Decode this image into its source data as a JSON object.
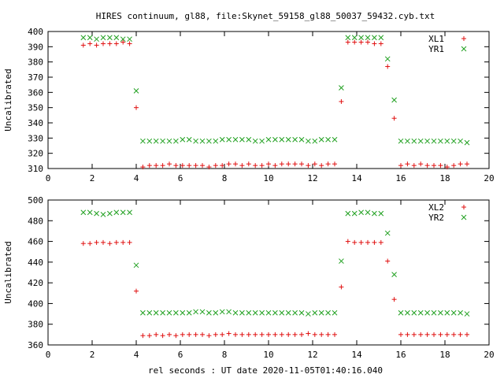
{
  "title": "HIRES continuum, gl88, file:Skynet_59158_gl88_50037_59432.cyb.txt",
  "xlabel": "rel seconds : UT date 2020-11-05T01:40:16.040",
  "colors": {
    "series1": "#e01010",
    "series2": "#20a020"
  },
  "chart_data": [
    {
      "type": "scatter",
      "ylabel": "Uncalibrated",
      "xlim": [
        0,
        20
      ],
      "ylim": [
        310,
        400
      ],
      "xticks": [
        "0",
        "2",
        "4",
        "6",
        "8",
        "10",
        "12",
        "14",
        "16",
        "18",
        "20"
      ],
      "yticks": [
        "310",
        "320",
        "330",
        "340",
        "350",
        "360",
        "370",
        "380",
        "390",
        "400"
      ],
      "legend_position": "top-right",
      "series": [
        {
          "name": "XL1",
          "marker": "plus",
          "x": [
            1.6,
            1.9,
            2.2,
            2.5,
            2.8,
            3.1,
            3.4,
            3.7,
            4.0,
            4.3,
            4.6,
            4.9,
            5.2,
            5.5,
            5.8,
            6.1,
            6.4,
            6.7,
            7.0,
            7.3,
            7.6,
            7.9,
            8.2,
            8.5,
            8.8,
            9.1,
            9.4,
            9.7,
            10.0,
            10.3,
            10.6,
            10.9,
            11.2,
            11.5,
            11.8,
            12.1,
            12.4,
            12.7,
            13.0,
            13.3,
            13.6,
            13.9,
            14.2,
            14.5,
            14.8,
            15.1,
            15.4,
            15.7,
            16.0,
            16.3,
            16.6,
            16.9,
            17.2,
            17.5,
            17.8,
            18.1,
            18.4,
            18.7,
            19.0
          ],
          "y": [
            391,
            392,
            391,
            392,
            392,
            392,
            393,
            392,
            350,
            311,
            312,
            312,
            312,
            313,
            312,
            312,
            312,
            312,
            312,
            311,
            312,
            312,
            313,
            313,
            312,
            313,
            312,
            312,
            313,
            312,
            313,
            313,
            313,
            313,
            312,
            313,
            312,
            313,
            313,
            354,
            393,
            393,
            393,
            393,
            392,
            392,
            377,
            343,
            312,
            313,
            312,
            313,
            312,
            312,
            312,
            311,
            312,
            313,
            313
          ]
        },
        {
          "name": "YR1",
          "marker": "cross",
          "x": [
            1.6,
            1.9,
            2.2,
            2.5,
            2.8,
            3.1,
            3.4,
            3.7,
            4.0,
            4.3,
            4.6,
            4.9,
            5.2,
            5.5,
            5.8,
            6.1,
            6.4,
            6.7,
            7.0,
            7.3,
            7.6,
            7.9,
            8.2,
            8.5,
            8.8,
            9.1,
            9.4,
            9.7,
            10.0,
            10.3,
            10.6,
            10.9,
            11.2,
            11.5,
            11.8,
            12.1,
            12.4,
            12.7,
            13.0,
            13.3,
            13.6,
            13.9,
            14.2,
            14.5,
            14.8,
            15.1,
            15.4,
            15.7,
            16.0,
            16.3,
            16.6,
            16.9,
            17.2,
            17.5,
            17.8,
            18.1,
            18.4,
            18.7,
            19.0
          ],
          "y": [
            396,
            396,
            395,
            396,
            396,
            396,
            395,
            395,
            361,
            328,
            328,
            328,
            328,
            328,
            328,
            329,
            329,
            328,
            328,
            328,
            328,
            329,
            329,
            329,
            329,
            329,
            328,
            328,
            329,
            329,
            329,
            329,
            329,
            329,
            328,
            328,
            329,
            329,
            329,
            363,
            396,
            396,
            396,
            396,
            396,
            396,
            382,
            355,
            328,
            328,
            328,
            328,
            328,
            328,
            328,
            328,
            328,
            328,
            327
          ]
        }
      ]
    },
    {
      "type": "scatter",
      "ylabel": "Uncalibrated",
      "xlim": [
        0,
        20
      ],
      "ylim": [
        360,
        500
      ],
      "xticks": [
        "0",
        "2",
        "4",
        "6",
        "8",
        "10",
        "12",
        "14",
        "16",
        "18",
        "20"
      ],
      "yticks": [
        "360",
        "380",
        "400",
        "420",
        "440",
        "460",
        "480",
        "500"
      ],
      "legend_position": "top-right",
      "series": [
        {
          "name": "XL2",
          "marker": "plus",
          "x": [
            1.6,
            1.9,
            2.2,
            2.5,
            2.8,
            3.1,
            3.4,
            3.7,
            4.0,
            4.3,
            4.6,
            4.9,
            5.2,
            5.5,
            5.8,
            6.1,
            6.4,
            6.7,
            7.0,
            7.3,
            7.6,
            7.9,
            8.2,
            8.5,
            8.8,
            9.1,
            9.4,
            9.7,
            10.0,
            10.3,
            10.6,
            10.9,
            11.2,
            11.5,
            11.8,
            12.1,
            12.4,
            12.7,
            13.0,
            13.3,
            13.6,
            13.9,
            14.2,
            14.5,
            14.8,
            15.1,
            15.4,
            15.7,
            16.0,
            16.3,
            16.6,
            16.9,
            17.2,
            17.5,
            17.8,
            18.1,
            18.4,
            18.7,
            19.0
          ],
          "y": [
            458,
            458,
            459,
            459,
            458,
            459,
            459,
            459,
            412,
            369,
            369,
            370,
            369,
            370,
            369,
            370,
            370,
            370,
            370,
            369,
            370,
            370,
            371,
            370,
            370,
            370,
            370,
            370,
            370,
            370,
            370,
            370,
            370,
            370,
            371,
            370,
            370,
            370,
            370,
            416,
            460,
            459,
            459,
            459,
            459,
            459,
            441,
            404,
            370,
            370,
            370,
            370,
            370,
            370,
            370,
            370,
            370,
            370,
            370
          ]
        },
        {
          "name": "YR2",
          "marker": "cross",
          "x": [
            1.6,
            1.9,
            2.2,
            2.5,
            2.8,
            3.1,
            3.4,
            3.7,
            4.0,
            4.3,
            4.6,
            4.9,
            5.2,
            5.5,
            5.8,
            6.1,
            6.4,
            6.7,
            7.0,
            7.3,
            7.6,
            7.9,
            8.2,
            8.5,
            8.8,
            9.1,
            9.4,
            9.7,
            10.0,
            10.3,
            10.6,
            10.9,
            11.2,
            11.5,
            11.8,
            12.1,
            12.4,
            12.7,
            13.0,
            13.3,
            13.6,
            13.9,
            14.2,
            14.5,
            14.8,
            15.1,
            15.4,
            15.7,
            16.0,
            16.3,
            16.6,
            16.9,
            17.2,
            17.5,
            17.8,
            18.1,
            18.4,
            18.7,
            19.0
          ],
          "y": [
            488,
            488,
            487,
            486,
            487,
            488,
            488,
            488,
            437,
            391,
            391,
            391,
            391,
            391,
            391,
            391,
            391,
            392,
            392,
            391,
            391,
            392,
            392,
            391,
            391,
            391,
            391,
            391,
            391,
            391,
            391,
            391,
            391,
            391,
            390,
            391,
            391,
            391,
            391,
            441,
            487,
            487,
            488,
            488,
            487,
            487,
            468,
            428,
            391,
            391,
            391,
            391,
            391,
            391,
            391,
            391,
            391,
            391,
            390
          ]
        }
      ]
    }
  ]
}
